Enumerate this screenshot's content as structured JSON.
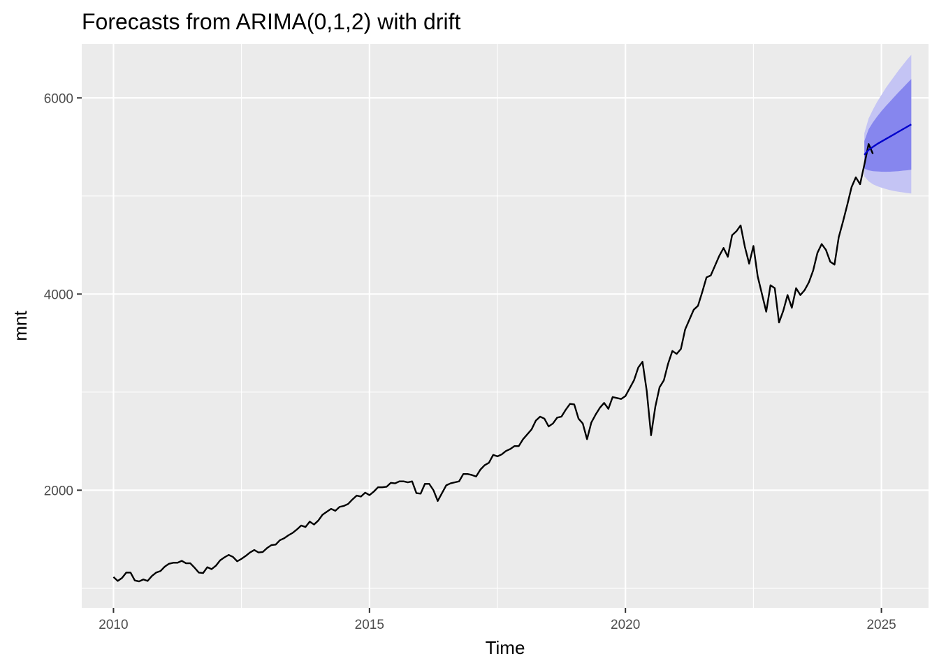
{
  "chart_data": {
    "type": "line",
    "title": "Forecasts from ARIMA(0,1,2) with drift",
    "xlabel": "Time",
    "ylabel": "mnt",
    "xlim": [
      2009.38,
      2025.92
    ],
    "ylim": [
      800,
      6550
    ],
    "x_ticks": [
      2010,
      2015,
      2020,
      2025
    ],
    "x_minor_ticks": [
      2012.5,
      2017.5,
      2022.5
    ],
    "y_ticks": [
      2000,
      4000,
      6000
    ],
    "y_minor_ticks": [
      1000,
      3000,
      5000
    ],
    "grid": true,
    "colors": {
      "panel": "#ebebeb",
      "grid": "#ffffff",
      "history_line": "#000000",
      "forecast_line": "#0000cc",
      "band_95": "#c4c4f4",
      "band_80": "#8686ee",
      "tick": "#333333"
    },
    "history": {
      "start": 2010.0,
      "frequency": 12,
      "values": [
        1115,
        1075,
        1105,
        1160,
        1160,
        1080,
        1070,
        1090,
        1075,
        1125,
        1160,
        1175,
        1220,
        1250,
        1260,
        1260,
        1280,
        1255,
        1255,
        1210,
        1160,
        1155,
        1215,
        1195,
        1230,
        1285,
        1315,
        1340,
        1320,
        1275,
        1300,
        1330,
        1365,
        1390,
        1365,
        1370,
        1410,
        1440,
        1445,
        1490,
        1510,
        1540,
        1565,
        1600,
        1640,
        1625,
        1680,
        1650,
        1690,
        1750,
        1780,
        1810,
        1790,
        1830,
        1840,
        1860,
        1905,
        1945,
        1935,
        1975,
        1950,
        1985,
        2030,
        2030,
        2035,
        2075,
        2070,
        2090,
        2090,
        2080,
        2090,
        1970,
        1965,
        2065,
        2065,
        2000,
        1890,
        1970,
        2050,
        2070,
        2080,
        2090,
        2165,
        2165,
        2155,
        2140,
        2210,
        2255,
        2280,
        2360,
        2345,
        2365,
        2400,
        2420,
        2450,
        2450,
        2520,
        2570,
        2620,
        2710,
        2750,
        2730,
        2650,
        2680,
        2740,
        2750,
        2820,
        2880,
        2875,
        2730,
        2680,
        2520,
        2690,
        2770,
        2840,
        2890,
        2830,
        2950,
        2940,
        2930,
        2960,
        3040,
        3120,
        3250,
        3310,
        3010,
        2560,
        2850,
        3050,
        3120,
        3290,
        3420,
        3390,
        3440,
        3640,
        3740,
        3840,
        3880,
        4020,
        4170,
        4190,
        4290,
        4390,
        4470,
        4380,
        4600,
        4640,
        4700,
        4480,
        4310,
        4490,
        4180,
        4000,
        3820,
        4090,
        4060,
        3710,
        3830,
        3990,
        3860,
        4060,
        3990,
        4040,
        4120,
        4240,
        4420,
        4510,
        4450,
        4330,
        4300,
        4580,
        4740,
        4910,
        5090,
        5190,
        5120,
        5320,
        5530,
        5430
      ]
    },
    "forecast": {
      "start": 2024.6667,
      "frequency": 12,
      "mean": [
        5420,
        5470,
        5500,
        5530,
        5555,
        5580,
        5605,
        5630,
        5655,
        5680,
        5705,
        5730
      ],
      "lo80": [
        5280,
        5262,
        5253,
        5250,
        5248,
        5247,
        5248,
        5250,
        5253,
        5258,
        5262,
        5268
      ],
      "hi80": [
        5560,
        5680,
        5750,
        5810,
        5865,
        5915,
        5962,
        6010,
        6057,
        6102,
        6148,
        6192
      ],
      "lo95": [
        5200,
        5150,
        5120,
        5100,
        5085,
        5072,
        5060,
        5050,
        5043,
        5037,
        5030,
        5025
      ],
      "hi95": [
        5640,
        5790,
        5880,
        5960,
        6030,
        6100,
        6160,
        6220,
        6280,
        6335,
        6390,
        6440
      ]
    }
  }
}
